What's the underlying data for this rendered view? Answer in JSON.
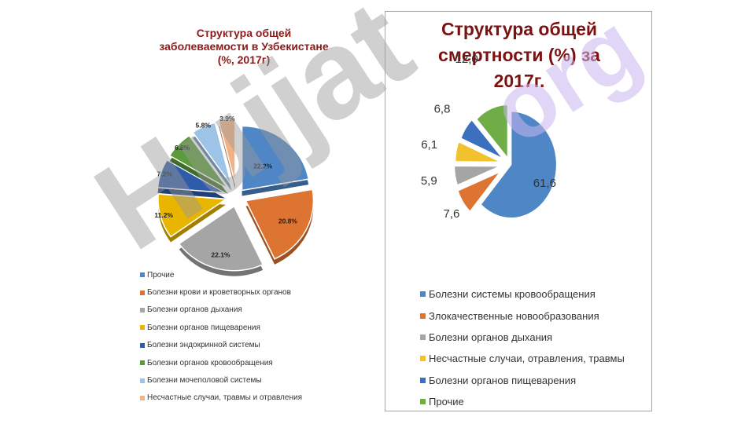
{
  "watermark": {
    "text": "Hujjat",
    "text2": "org"
  },
  "chart_data": [
    {
      "type": "pie",
      "title": "Структура общей заболеваемости в Узбекистане (%, 2017г)",
      "title_lines": [
        "Структура общей",
        "заболеваемости в Узбекистане",
        "(%, 2017г)"
      ],
      "exploded": true,
      "legend_position": "bottom",
      "slices": [
        {
          "name": "Прочие",
          "value": 22.2,
          "label": "22.2%",
          "color": "#4f86c6"
        },
        {
          "name": "Болезни крови и кроветворных органов",
          "value": 20.8,
          "label": "20.8%",
          "color": "#dd7431"
        },
        {
          "name": "Болезни органов дыхания",
          "value": 22.1,
          "label": "22.1%",
          "color": "#a5a5a5"
        },
        {
          "name": "Болезни органов пищеварения",
          "value": 11.2,
          "label": "11.2%",
          "color": "#e8b600"
        },
        {
          "name": "Болезни эндокринной системы",
          "value": 7.2,
          "label": "7.2%",
          "color": "#2f5ca8"
        },
        {
          "name": "Болезни органов кровообращения",
          "value": 6.8,
          "label": "6.8%",
          "color": "#5c9b3b"
        },
        {
          "name": "Болезни мочеполовой системы",
          "value": 5.8,
          "label": "5.8%",
          "color": "#9dc3e6"
        },
        {
          "name": "Несчастные случаи, травмы и отравления",
          "value": 3.9,
          "label": "3.9%",
          "color": "#f4b183"
        }
      ]
    },
    {
      "type": "pie",
      "title": "Структура общей смертности (%) за 2017г.",
      "title_lines": [
        "Структура общей",
        "смертности (%) за",
        "2017г."
      ],
      "exploded": true,
      "legend_position": "bottom",
      "slices": [
        {
          "name": "Болезни системы кровообращения",
          "value": 61.6,
          "label": "61,6",
          "color": "#4f86c6"
        },
        {
          "name": "Злокачественные новообразования",
          "value": 7.6,
          "label": "7,6",
          "color": "#dd7431"
        },
        {
          "name": "Болезни органов дыхания",
          "value": 5.9,
          "label": "5,9",
          "color": "#a5a5a5"
        },
        {
          "name": "Несчастные случаи, отравления, травмы",
          "value": 6.1,
          "label": "6,1",
          "color": "#f2c12e"
        },
        {
          "name": "Болезни органов пищеварения",
          "value": 6.8,
          "label": "6,8",
          "color": "#3d6fbf"
        },
        {
          "name": "Прочие",
          "value": 12.0,
          "label": "12,0",
          "color": "#6fad47"
        }
      ]
    }
  ]
}
